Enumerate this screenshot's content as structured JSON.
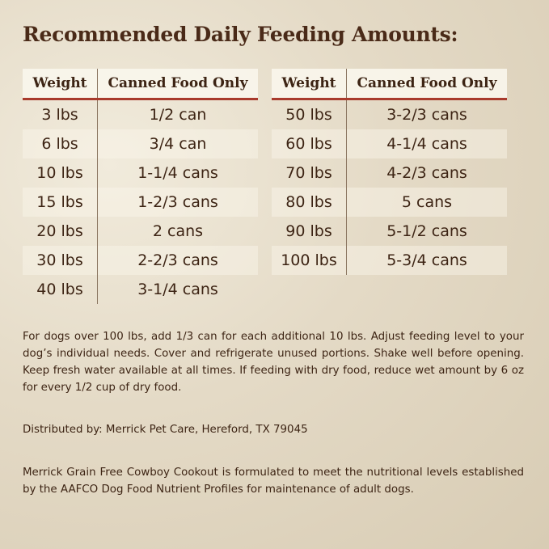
{
  "title": "Recommended Daily Feeding Amounts:",
  "tables": [
    {
      "headers": [
        "Weight",
        "Canned Food Only"
      ],
      "rows": [
        [
          "3 lbs",
          "1/2 can"
        ],
        [
          "6 lbs",
          "3/4 can"
        ],
        [
          "10 lbs",
          "1-1/4 cans"
        ],
        [
          "15 lbs",
          "1-2/3 cans"
        ],
        [
          "20 lbs",
          "2 cans"
        ],
        [
          "30 lbs",
          "2-2/3 cans"
        ],
        [
          "40 lbs",
          "3-1/4 cans"
        ]
      ]
    },
    {
      "headers": [
        "Weight",
        "Canned Food Only"
      ],
      "rows": [
        [
          "50 lbs",
          "3-2/3 cans"
        ],
        [
          "60 lbs",
          "4-1/4 cans"
        ],
        [
          "70 lbs",
          "4-2/3 cans"
        ],
        [
          "80 lbs",
          "5 cans"
        ],
        [
          "90 lbs",
          "5-1/2 cans"
        ],
        [
          "100 lbs",
          "5-3/4 cans"
        ]
      ]
    }
  ],
  "instructions": "For dogs over 100 lbs, add 1/3 can for each additional 10 lbs. Adjust feeding level to your dog’s individual needs. Cover and refrigerate unused portions. Shake well before opening. Keep fresh water available at all times. If feeding with dry food, reduce wet amount by 6 oz for every 1/2 cup of dry food.",
  "distributor": "Distributed by: Merrick Pet Care, Hereford, TX 79045",
  "statement": "Merrick Grain Free Cowboy Cookout is formulated to meet the nutritional levels established by the AAFCO Dog Food Nutrient Profiles for maintenance of adult dogs."
}
